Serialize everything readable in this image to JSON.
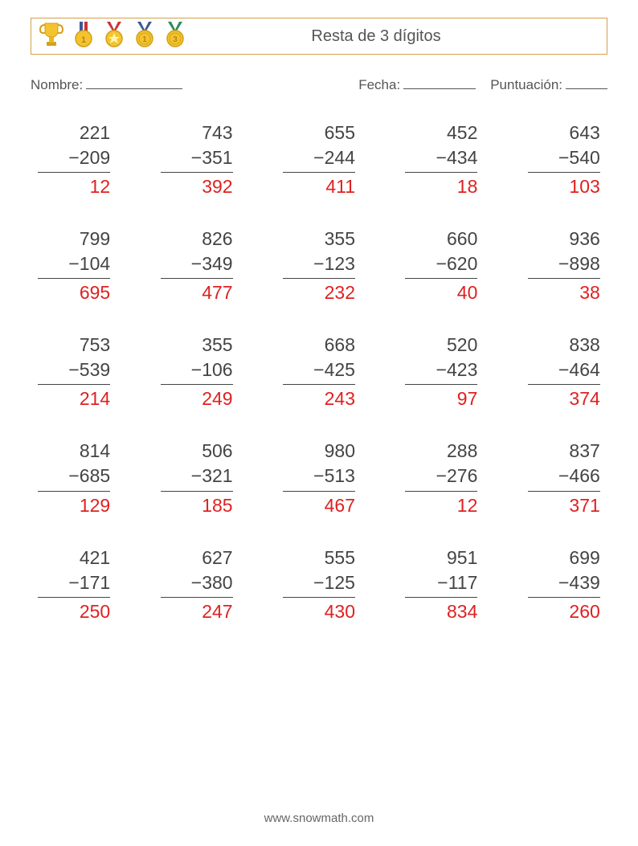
{
  "header": {
    "title": "Resta de 3 dígitos",
    "border_color": "#d5a04a",
    "icons": [
      {
        "name": "trophy-icon"
      },
      {
        "name": "gold-medal-icon"
      },
      {
        "name": "star-medal-icon"
      },
      {
        "name": "medal-1-icon"
      },
      {
        "name": "medal-3-icon"
      }
    ]
  },
  "labels": {
    "name": "Nombre:",
    "date": "Fecha:",
    "score": "Puntuación:"
  },
  "style": {
    "text_color": "#444444",
    "answer_color": "#e02020",
    "font_size_problem": 23,
    "font_size_title": 20,
    "font_size_labels": 17,
    "grid_columns": 5,
    "grid_rows": 5,
    "operator": "−"
  },
  "problems": [
    {
      "a": 221,
      "b": 209,
      "ans": 12
    },
    {
      "a": 743,
      "b": 351,
      "ans": 392
    },
    {
      "a": 655,
      "b": 244,
      "ans": 411
    },
    {
      "a": 452,
      "b": 434,
      "ans": 18
    },
    {
      "a": 643,
      "b": 540,
      "ans": 103
    },
    {
      "a": 799,
      "b": 104,
      "ans": 695
    },
    {
      "a": 826,
      "b": 349,
      "ans": 477
    },
    {
      "a": 355,
      "b": 123,
      "ans": 232
    },
    {
      "a": 660,
      "b": 620,
      "ans": 40
    },
    {
      "a": 936,
      "b": 898,
      "ans": 38
    },
    {
      "a": 753,
      "b": 539,
      "ans": 214
    },
    {
      "a": 355,
      "b": 106,
      "ans": 249
    },
    {
      "a": 668,
      "b": 425,
      "ans": 243
    },
    {
      "a": 520,
      "b": 423,
      "ans": 97
    },
    {
      "a": 838,
      "b": 464,
      "ans": 374
    },
    {
      "a": 814,
      "b": 685,
      "ans": 129
    },
    {
      "a": 506,
      "b": 321,
      "ans": 185
    },
    {
      "a": 980,
      "b": 513,
      "ans": 467
    },
    {
      "a": 288,
      "b": 276,
      "ans": 12
    },
    {
      "a": 837,
      "b": 466,
      "ans": 371
    },
    {
      "a": 421,
      "b": 171,
      "ans": 250
    },
    {
      "a": 627,
      "b": 380,
      "ans": 247
    },
    {
      "a": 555,
      "b": 125,
      "ans": 430
    },
    {
      "a": 951,
      "b": 117,
      "ans": 834
    },
    {
      "a": 699,
      "b": 439,
      "ans": 260
    }
  ],
  "footer": {
    "text": "www.snowmath.com"
  }
}
